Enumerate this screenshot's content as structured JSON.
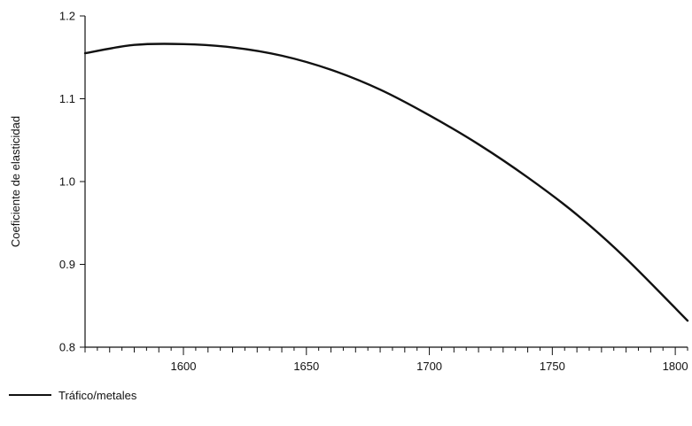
{
  "chart_data": {
    "type": "line",
    "title": "",
    "xlabel": "",
    "ylabel": "Coeficiente de elasticidad",
    "xlim": [
      1560,
      1805
    ],
    "ylim": [
      0.8,
      1.2
    ],
    "x_ticks": [
      1600,
      1650,
      1700,
      1750,
      1800
    ],
    "x_tick_labels": [
      "1600",
      "1650",
      "1700",
      "1750",
      "1800"
    ],
    "y_ticks": [
      0.8,
      0.9,
      1.0,
      1.1,
      1.2
    ],
    "y_tick_labels": [
      "0.8",
      "0.9",
      "1.0",
      "1.1",
      "1.2"
    ],
    "grid": false,
    "legend_position": "bottom-left",
    "series": [
      {
        "name": "Tráfico/metales",
        "color": "#111111",
        "x": [
          1560,
          1580,
          1600,
          1620,
          1640,
          1660,
          1680,
          1700,
          1720,
          1740,
          1760,
          1780,
          1805
        ],
        "y": [
          1.155,
          1.165,
          1.166,
          1.162,
          1.152,
          1.135,
          1.111,
          1.08,
          1.045,
          1.005,
          0.96,
          0.907,
          0.832
        ]
      }
    ]
  }
}
